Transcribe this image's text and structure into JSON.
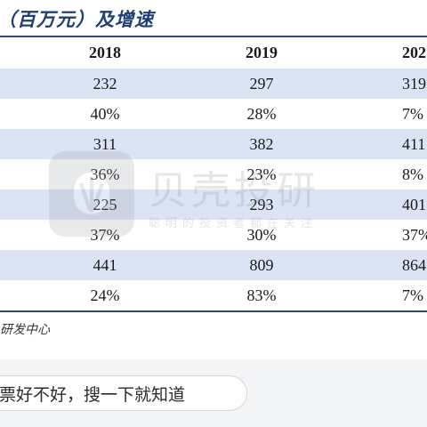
{
  "title": "（百万元）及增速",
  "table": {
    "headers": [
      "2018",
      "2019",
      "202"
    ],
    "rows": [
      [
        "232",
        "297",
        "319"
      ],
      [
        "40%",
        "28%",
        "7%"
      ],
      [
        "311",
        "382",
        "411"
      ],
      [
        "36%",
        "23%",
        "8%"
      ],
      [
        "225",
        "293",
        "401"
      ],
      [
        "37%",
        "30%",
        "37%"
      ],
      [
        "441",
        "809",
        "864"
      ],
      [
        "24%",
        "83%",
        "7%"
      ]
    ]
  },
  "source": "研发中心",
  "watermark": {
    "name": "贝壳投研",
    "slogan": "聪明的投资者都在关注"
  },
  "search": {
    "text": "票好不好，搜一下就知道"
  },
  "colors": {
    "header_text": "#1e3f73",
    "row_shade": "#dbe4f4",
    "rule": "#2a4a7c"
  }
}
